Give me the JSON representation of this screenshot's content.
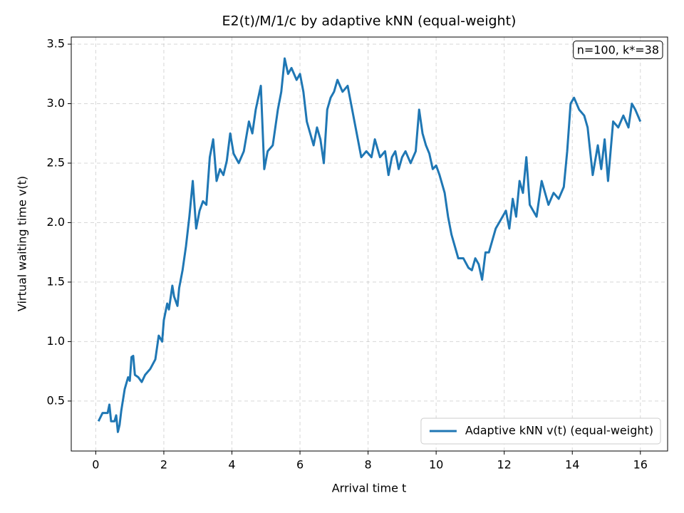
{
  "chart_data": {
    "type": "line",
    "title": "E2(t)/M/1/c by adaptive kNN (equal-weight)",
    "x_label": "Arrival time t",
    "y_label": "Virtual waiting time v(t)",
    "annotation": "n=100, k*=38",
    "legend_position": "lower right",
    "grid": true,
    "xlim": [
      -0.72,
      16.8
    ],
    "ylim": [
      0.08,
      3.56
    ],
    "xticks": [
      0,
      2,
      4,
      6,
      8,
      10,
      12,
      14,
      16
    ],
    "yticks": [
      0.5,
      {
        "value": 1,
        "label": "1.0"
      },
      1.5,
      {
        "value": 2,
        "label": "2.0"
      },
      2.5,
      {
        "value": 3,
        "label": "3.0"
      },
      3.5
    ],
    "series": [
      {
        "name": "Adaptive kNN v(t) (equal-weight)",
        "color": "#1f77b4",
        "x": [
          0.08,
          0.2,
          0.35,
          0.4,
          0.45,
          0.55,
          0.6,
          0.65,
          0.7,
          0.75,
          0.85,
          0.95,
          1.0,
          1.05,
          1.1,
          1.15,
          1.25,
          1.35,
          1.45,
          1.6,
          1.75,
          1.85,
          1.95,
          2.0,
          2.1,
          2.15,
          2.25,
          2.3,
          2.4,
          2.45,
          2.55,
          2.65,
          2.75,
          2.85,
          2.95,
          3.05,
          3.15,
          3.25,
          3.35,
          3.45,
          3.55,
          3.65,
          3.75,
          3.85,
          3.95,
          4.05,
          4.2,
          4.35,
          4.5,
          4.6,
          4.7,
          4.85,
          4.95,
          5.05,
          5.2,
          5.35,
          5.45,
          5.55,
          5.65,
          5.75,
          5.9,
          6.0,
          6.1,
          6.2,
          6.3,
          6.4,
          6.5,
          6.6,
          6.7,
          6.8,
          6.9,
          7.0,
          7.1,
          7.25,
          7.4,
          7.5,
          7.6,
          7.7,
          7.8,
          7.95,
          8.1,
          8.2,
          8.35,
          8.5,
          8.6,
          8.7,
          8.8,
          8.9,
          9.0,
          9.1,
          9.25,
          9.4,
          9.5,
          9.6,
          9.7,
          9.8,
          9.9,
          10.0,
          10.1,
          10.25,
          10.35,
          10.45,
          10.55,
          10.65,
          10.8,
          10.95,
          11.05,
          11.15,
          11.25,
          11.35,
          11.45,
          11.55,
          11.65,
          11.75,
          11.85,
          11.95,
          12.05,
          12.15,
          12.25,
          12.35,
          12.45,
          12.55,
          12.65,
          12.75,
          12.85,
          12.95,
          13.1,
          13.2,
          13.3,
          13.45,
          13.6,
          13.75,
          13.85,
          13.95,
          14.05,
          14.2,
          14.35,
          14.45,
          14.6,
          14.75,
          14.85,
          14.95,
          15.05,
          15.2,
          15.35,
          15.5,
          15.65,
          15.75,
          15.85,
          16.0
        ],
        "values": [
          0.33,
          0.4,
          0.4,
          0.47,
          0.33,
          0.33,
          0.38,
          0.24,
          0.3,
          0.42,
          0.6,
          0.7,
          0.67,
          0.87,
          0.88,
          0.72,
          0.7,
          0.66,
          0.72,
          0.77,
          0.85,
          1.05,
          1.0,
          1.18,
          1.32,
          1.27,
          1.47,
          1.38,
          1.3,
          1.45,
          1.6,
          1.8,
          2.05,
          2.35,
          1.95,
          2.1,
          2.18,
          2.15,
          2.55,
          2.7,
          2.35,
          2.45,
          2.4,
          2.52,
          2.75,
          2.58,
          2.5,
          2.6,
          2.85,
          2.75,
          2.95,
          3.15,
          2.45,
          2.6,
          2.65,
          2.95,
          3.1,
          3.38,
          3.25,
          3.3,
          3.2,
          3.25,
          3.1,
          2.85,
          2.75,
          2.65,
          2.8,
          2.7,
          2.5,
          2.95,
          3.05,
          3.1,
          3.2,
          3.1,
          3.15,
          3.0,
          2.85,
          2.7,
          2.55,
          2.6,
          2.55,
          2.7,
          2.55,
          2.6,
          2.4,
          2.55,
          2.6,
          2.45,
          2.55,
          2.6,
          2.5,
          2.6,
          2.95,
          2.75,
          2.65,
          2.58,
          2.45,
          2.48,
          2.4,
          2.25,
          2.05,
          1.9,
          1.8,
          1.7,
          1.7,
          1.62,
          1.6,
          1.7,
          1.65,
          1.52,
          1.75,
          1.75,
          1.85,
          1.95,
          2.0,
          2.05,
          2.1,
          1.95,
          2.2,
          2.05,
          2.35,
          2.25,
          2.55,
          2.15,
          2.1,
          2.05,
          2.35,
          2.25,
          2.15,
          2.25,
          2.2,
          2.3,
          2.6,
          3.0,
          3.05,
          2.95,
          2.9,
          2.8,
          2.4,
          2.65,
          2.45,
          2.7,
          2.35,
          2.85,
          2.8,
          2.9,
          2.8,
          3.0,
          2.95,
          2.85
        ]
      }
    ]
  }
}
